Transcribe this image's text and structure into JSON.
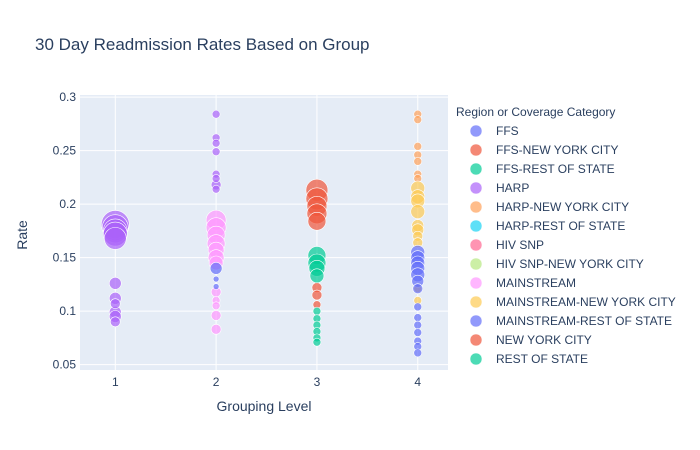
{
  "chart_data": {
    "type": "scatter",
    "title": "30 Day Readmission Rates Based on Group",
    "xlabel": "Grouping Level",
    "ylabel": "Rate",
    "xlim": [
      0.65,
      4.3
    ],
    "ylim": [
      0.045,
      0.302
    ],
    "x_ticks": [
      1,
      2,
      3,
      4
    ],
    "y_ticks": [
      0.05,
      0.1,
      0.15,
      0.2,
      0.25,
      0.3
    ],
    "x_tick_labels": [
      "1",
      "2",
      "3",
      "4"
    ],
    "y_tick_labels": [
      "0.05",
      "0.1",
      "0.15",
      "0.2",
      "0.25",
      "0.3"
    ],
    "grid": true,
    "legend_title": "Region or Coverage Category",
    "legend_position": "right",
    "series": [
      {
        "name": "FFS",
        "color": "#636efa",
        "points": []
      },
      {
        "name": "FFS-NEW YORK CITY",
        "color": "#EF553B",
        "points": []
      },
      {
        "name": "FFS-REST OF STATE",
        "color": "#00cc96",
        "points": []
      },
      {
        "name": "HARP",
        "color": "#ab63fa",
        "points": [
          {
            "x": 1,
            "y": 0.181,
            "s": 14
          },
          {
            "x": 1,
            "y": 0.178,
            "s": 13
          },
          {
            "x": 1,
            "y": 0.175,
            "s": 12
          },
          {
            "x": 1,
            "y": 0.172,
            "s": 12
          },
          {
            "x": 1,
            "y": 0.168,
            "s": 11
          },
          {
            "x": 1,
            "y": 0.126,
            "s": 6
          },
          {
            "x": 1,
            "y": 0.112,
            "s": 6
          },
          {
            "x": 1,
            "y": 0.107,
            "s": 5
          },
          {
            "x": 1,
            "y": 0.099,
            "s": 6
          },
          {
            "x": 1,
            "y": 0.095,
            "s": 6
          },
          {
            "x": 1,
            "y": 0.09,
            "s": 5
          },
          {
            "x": 2,
            "y": 0.284,
            "s": 4
          },
          {
            "x": 2,
            "y": 0.262,
            "s": 4
          },
          {
            "x": 2,
            "y": 0.257,
            "s": 4
          },
          {
            "x": 2,
            "y": 0.249,
            "s": 4
          },
          {
            "x": 2,
            "y": 0.228,
            "s": 4
          },
          {
            "x": 2,
            "y": 0.224,
            "s": 4
          },
          {
            "x": 2,
            "y": 0.218,
            "s": 5
          },
          {
            "x": 2,
            "y": 0.214,
            "s": 4
          }
        ]
      },
      {
        "name": "HARP-NEW YORK CITY",
        "color": "#FFA15A",
        "points": [
          {
            "x": 4,
            "y": 0.284,
            "s": 4
          },
          {
            "x": 4,
            "y": 0.279,
            "s": 4
          },
          {
            "x": 4,
            "y": 0.254,
            "s": 4
          },
          {
            "x": 4,
            "y": 0.246,
            "s": 4
          },
          {
            "x": 4,
            "y": 0.24,
            "s": 4
          },
          {
            "x": 4,
            "y": 0.228,
            "s": 4
          },
          {
            "x": 4,
            "y": 0.224,
            "s": 4
          }
        ]
      },
      {
        "name": "HARP-REST OF STATE",
        "color": "#19d3f3",
        "points": []
      },
      {
        "name": "HIV SNP",
        "color": "#FF6692",
        "points": []
      },
      {
        "name": "HIV SNP-NEW YORK CITY",
        "color": "#B6E880",
        "points": []
      },
      {
        "name": "MAINSTREAM",
        "color": "#FF97FF",
        "points": [
          {
            "x": 2,
            "y": 0.185,
            "s": 10
          },
          {
            "x": 2,
            "y": 0.178,
            "s": 10
          },
          {
            "x": 2,
            "y": 0.171,
            "s": 9
          },
          {
            "x": 2,
            "y": 0.163,
            "s": 9
          },
          {
            "x": 2,
            "y": 0.157,
            "s": 8
          },
          {
            "x": 2,
            "y": 0.15,
            "s": 8
          },
          {
            "x": 2,
            "y": 0.145,
            "s": 7
          },
          {
            "x": 2,
            "y": 0.118,
            "s": 5
          },
          {
            "x": 2,
            "y": 0.11,
            "s": 4
          },
          {
            "x": 2,
            "y": 0.105,
            "s": 4
          },
          {
            "x": 2,
            "y": 0.096,
            "s": 5
          },
          {
            "x": 2,
            "y": 0.083,
            "s": 5
          }
        ]
      },
      {
        "name": "MAINSTREAM-NEW YORK CITY",
        "color": "#FECB52",
        "points": [
          {
            "x": 4,
            "y": 0.215,
            "s": 7
          },
          {
            "x": 4,
            "y": 0.207,
            "s": 7
          },
          {
            "x": 4,
            "y": 0.203,
            "s": 7
          },
          {
            "x": 4,
            "y": 0.193,
            "s": 7
          },
          {
            "x": 4,
            "y": 0.18,
            "s": 6
          },
          {
            "x": 4,
            "y": 0.176,
            "s": 6
          },
          {
            "x": 4,
            "y": 0.17,
            "s": 5
          },
          {
            "x": 4,
            "y": 0.164,
            "s": 5
          },
          {
            "x": 4,
            "y": 0.121,
            "s": 4
          },
          {
            "x": 4,
            "y": 0.11,
            "s": 4
          }
        ]
      },
      {
        "name": "MAINSTREAM-REST OF STATE",
        "color": "#636efa",
        "points": [
          {
            "x": 2,
            "y": 0.14,
            "s": 6
          },
          {
            "x": 2,
            "y": 0.13,
            "s": 3
          },
          {
            "x": 2,
            "y": 0.123,
            "s": 3
          },
          {
            "x": 4,
            "y": 0.155,
            "s": 7
          },
          {
            "x": 4,
            "y": 0.15,
            "s": 7
          },
          {
            "x": 4,
            "y": 0.145,
            "s": 7
          },
          {
            "x": 4,
            "y": 0.14,
            "s": 7
          },
          {
            "x": 4,
            "y": 0.134,
            "s": 7
          },
          {
            "x": 4,
            "y": 0.128,
            "s": 6
          },
          {
            "x": 4,
            "y": 0.121,
            "s": 5
          },
          {
            "x": 4,
            "y": 0.104,
            "s": 4
          },
          {
            "x": 4,
            "y": 0.094,
            "s": 4
          },
          {
            "x": 4,
            "y": 0.087,
            "s": 4
          },
          {
            "x": 4,
            "y": 0.08,
            "s": 4
          },
          {
            "x": 4,
            "y": 0.072,
            "s": 4
          },
          {
            "x": 4,
            "y": 0.067,
            "s": 4
          },
          {
            "x": 4,
            "y": 0.061,
            "s": 4
          }
        ]
      },
      {
        "name": "NEW YORK CITY",
        "color": "#EF553B",
        "points": [
          {
            "x": 3,
            "y": 0.213,
            "s": 11
          },
          {
            "x": 3,
            "y": 0.205,
            "s": 11
          },
          {
            "x": 3,
            "y": 0.198,
            "s": 10
          },
          {
            "x": 3,
            "y": 0.191,
            "s": 10
          },
          {
            "x": 3,
            "y": 0.184,
            "s": 9
          },
          {
            "x": 3,
            "y": 0.122,
            "s": 5
          },
          {
            "x": 3,
            "y": 0.115,
            "s": 5
          },
          {
            "x": 3,
            "y": 0.106,
            "s": 4
          }
        ]
      },
      {
        "name": "REST OF STATE",
        "color": "#00cc96",
        "points": [
          {
            "x": 3,
            "y": 0.152,
            "s": 9
          },
          {
            "x": 3,
            "y": 0.145,
            "s": 9
          },
          {
            "x": 3,
            "y": 0.14,
            "s": 8
          },
          {
            "x": 3,
            "y": 0.133,
            "s": 7
          },
          {
            "x": 3,
            "y": 0.1,
            "s": 4
          },
          {
            "x": 3,
            "y": 0.093,
            "s": 4
          },
          {
            "x": 3,
            "y": 0.087,
            "s": 4
          },
          {
            "x": 3,
            "y": 0.081,
            "s": 4
          },
          {
            "x": 3,
            "y": 0.075,
            "s": 4
          },
          {
            "x": 3,
            "y": 0.071,
            "s": 4
          }
        ]
      }
    ]
  }
}
